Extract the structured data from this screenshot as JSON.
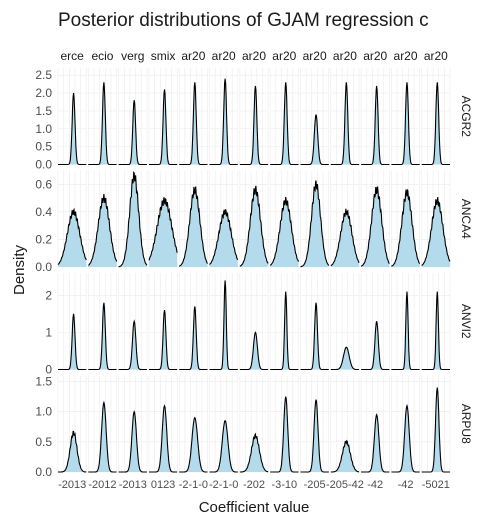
{
  "chart_data": {
    "type": "area",
    "title": "Posterior distributions of GJAM regression c",
    "xlabel": "Coefficient value",
    "ylabel": "Density",
    "fill_color": "#b3dbec",
    "line_color": "#000000",
    "grid": true,
    "columns": [
      "erce",
      "ecio",
      "verg",
      "smix",
      "ar20",
      "ar20",
      "ar20",
      "ar20",
      "ar20",
      "ar20",
      "ar20",
      "ar20",
      "ar20"
    ],
    "rows": [
      {
        "name": "ACGR2",
        "y_ticks": [
          "0.0",
          "0.5",
          "1.0",
          "1.5",
          "2.0",
          "2.5"
        ],
        "ylim": [
          0,
          2.7
        ],
        "peaks": [
          2.0,
          2.3,
          1.8,
          2.1,
          2.3,
          2.4,
          2.2,
          2.3,
          1.4,
          2.3,
          2.2,
          2.3,
          2.3
        ],
        "widths": [
          0.05,
          0.05,
          0.05,
          0.05,
          0.05,
          0.05,
          0.05,
          0.05,
          0.06,
          0.05,
          0.05,
          0.05,
          0.05
        ]
      },
      {
        "name": "ANCA4",
        "y_ticks": [
          "0.0",
          "0.2",
          "0.4",
          "0.6"
        ],
        "ylim": [
          0,
          0.7
        ],
        "peaks": [
          0.4,
          0.5,
          0.66,
          0.48,
          0.56,
          0.4,
          0.56,
          0.48,
          0.6,
          0.4,
          0.56,
          0.54,
          0.48
        ],
        "widths": [
          0.22,
          0.2,
          0.16,
          0.26,
          0.18,
          0.22,
          0.18,
          0.2,
          0.16,
          0.2,
          0.18,
          0.18,
          0.2
        ]
      },
      {
        "name": "ANVI2",
        "y_ticks": [
          "0",
          "1",
          "2"
        ],
        "ylim": [
          0,
          2.6
        ],
        "peaks": [
          1.5,
          1.8,
          1.3,
          1.6,
          1.7,
          2.4,
          1.0,
          2.1,
          1.8,
          0.6,
          1.3,
          2.1,
          2.1
        ],
        "widths": [
          0.05,
          0.05,
          0.06,
          0.05,
          0.05,
          0.04,
          0.07,
          0.04,
          0.05,
          0.1,
          0.06,
          0.04,
          0.04
        ]
      },
      {
        "name": "ARPU8",
        "y_ticks": [
          "0.0",
          "0.5",
          "1.0",
          "1.5"
        ],
        "ylim": [
          0,
          1.6
        ],
        "peaks": [
          0.65,
          1.15,
          1.0,
          1.1,
          0.9,
          0.85,
          0.6,
          1.25,
          1.2,
          0.5,
          0.95,
          1.1,
          1.4
        ],
        "widths": [
          0.12,
          0.08,
          0.08,
          0.08,
          0.1,
          0.1,
          0.14,
          0.07,
          0.07,
          0.14,
          0.08,
          0.08,
          0.06
        ]
      }
    ],
    "x_tick_labels": [
      "-2013",
      "-2012",
      "-2013",
      "0123",
      "-2-1-0",
      "-2-1-0",
      "-202",
      "-3-10",
      "-205",
      "-205-42",
      "-42",
      "-42",
      "-5021"
    ]
  }
}
